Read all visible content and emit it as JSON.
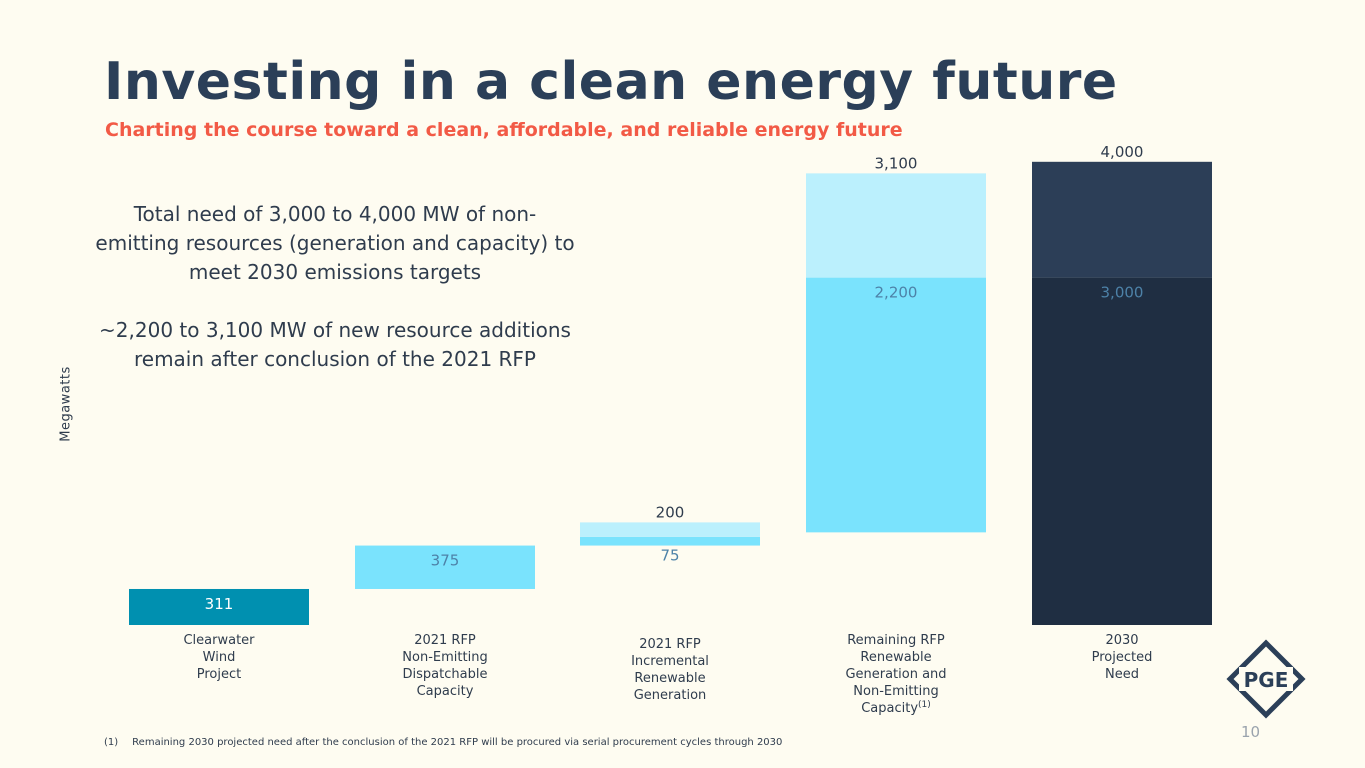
{
  "page": {
    "title": "Investing in a clean energy future",
    "subtitle": "Charting the course toward a clean, affordable, and reliable energy future",
    "callout_line1": "Total need of 3,000 to 4,000 MW of non-emitting resources (generation and capacity) to meet 2030 emissions targets",
    "callout_line2": "~2,200 to 3,100 MW of new resource additions remain after conclusion of the 2021 RFP",
    "footnote_marker": "(1)",
    "footnote": "Remaining 2030 projected need after the conclusion of the 2021 RFP will be procured via serial procurement cycles through 2030",
    "page_number": "10",
    "logo_text": "PGE"
  },
  "colors": {
    "background": "#fefcf1",
    "title": "#2b3f58",
    "subtitle": "#f25a46",
    "clearwater": "#0090b0",
    "light_blue": "#7ae3fd",
    "pale_blue": "#bbf0fd",
    "navy_top": "#2c3e57",
    "navy_bottom": "#1f2e42",
    "inner_label": "#4d82a8",
    "text": "#2f3c4d"
  },
  "chart_data": {
    "type": "bar",
    "subtype": "waterfall",
    "title": "Investing in a clean energy future",
    "ylabel": "Megawatts",
    "xlabel": "",
    "ylim": [
      0,
      4000
    ],
    "grid": false,
    "categories": [
      [
        "Clearwater",
        "Wind",
        "Project"
      ],
      [
        "2021 RFP",
        "Non-Emitting",
        "Dispatchable",
        "Capacity"
      ],
      [
        "2021 RFP",
        "Incremental",
        "Renewable",
        "Generation"
      ],
      [
        "Remaining RFP",
        "Renewable",
        "Generation and",
        "Non-Emitting",
        "Capacity"
      ],
      [
        "2030",
        "Projected",
        "Need"
      ]
    ],
    "category_superscript": [
      "",
      "",
      "",
      "(1)",
      ""
    ],
    "segments": [
      {
        "name": "Clearwater Wind Project",
        "category": 0,
        "base": 0,
        "value": 311,
        "color": "#0090b0",
        "label": "311",
        "label_pos": "inside",
        "label_color": "#ffffff"
      },
      {
        "name": "2021 RFP Non-Emitting Dispatchable Capacity",
        "category": 1,
        "base": 311,
        "value": 375,
        "color": "#7ae3fd",
        "label": "375",
        "label_pos": "inside",
        "label_color": "#4d82a8"
      },
      {
        "name": "2021 RFP Incremental Renewable Generation (low)",
        "category": 2,
        "base": 686,
        "value": 75,
        "color": "#7ae3fd",
        "label": "75",
        "label_pos": "below",
        "label_color": "#4d82a8"
      },
      {
        "name": "2021 RFP Incremental Renewable Generation (high)",
        "category": 2,
        "base": 761,
        "value": 125,
        "color": "#bbf0fd",
        "label": "200",
        "label_pos": "above",
        "label_color": "#2f3c4d"
      },
      {
        "name": "Remaining RFP (low)",
        "category": 3,
        "base": 800,
        "value": 2200,
        "color": "#7ae3fd",
        "label": "2,200",
        "label_pos": "inside",
        "label_color": "#4d82a8"
      },
      {
        "name": "Remaining RFP (high)",
        "category": 3,
        "base": 3000,
        "value": 900,
        "color": "#bbf0fd",
        "label": "3,100",
        "label_pos": "above",
        "label_color": "#2f3c4d"
      },
      {
        "name": "2030 Projected Need (low)",
        "category": 4,
        "base": 0,
        "value": 3000,
        "color": "#1f2e42",
        "label": "3,000",
        "label_pos": "inside",
        "label_color": "#4d82a8"
      },
      {
        "name": "2030 Projected Need (high)",
        "category": 4,
        "base": 3000,
        "value": 1000,
        "color": "#2c3e57",
        "label": "4,000",
        "label_pos": "above",
        "label_color": "#2f3c4d"
      }
    ]
  }
}
